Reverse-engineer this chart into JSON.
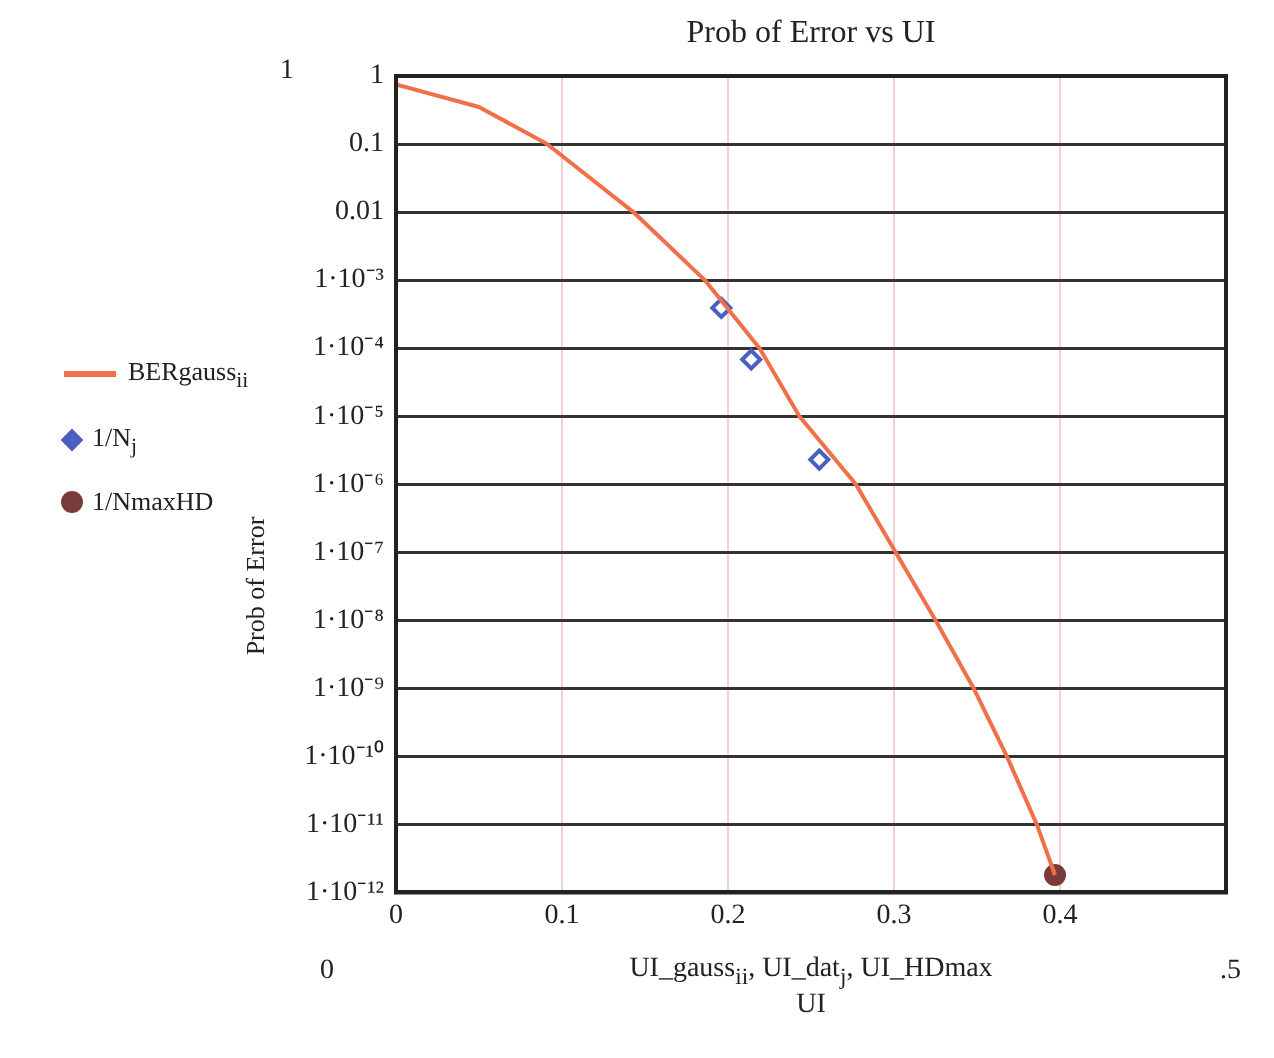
{
  "chart_data": {
    "type": "line",
    "title": "Prob of Error vs UI",
    "xlabel": "UI_gauss$_{ii}$, UI_dat$_{j}$, UI_HDmax\nUI",
    "ylabel": "Prob of Error",
    "annotations": [
      "1",
      "0",
      ".5"
    ],
    "xlim": [
      0,
      0.5
    ],
    "xticks": [
      0,
      0.1,
      0.2,
      0.3,
      0.4
    ],
    "ylim": [
      1e-12,
      1
    ],
    "yticks": [
      {
        "value": 1,
        "label": "1"
      },
      {
        "value": 0.1,
        "label": "0.1"
      },
      {
        "value": 0.01,
        "label": "0.01"
      },
      {
        "value": 0.001,
        "label": "1·10⁻³"
      },
      {
        "value": 0.0001,
        "label": "1·10⁻⁴"
      },
      {
        "value": 1e-05,
        "label": "1·10⁻⁵"
      },
      {
        "value": 1e-06,
        "label": "1·10⁻⁶"
      },
      {
        "value": 1e-07,
        "label": "1·10⁻⁷"
      },
      {
        "value": 1e-08,
        "label": "1·10⁻⁸"
      },
      {
        "value": 1e-09,
        "label": "1·10⁻⁹"
      },
      {
        "value": 1e-10,
        "label": "1·10⁻¹⁰"
      },
      {
        "value": 1e-11,
        "label": "1·10⁻¹¹"
      },
      {
        "value": 1e-12,
        "label": "1·10⁻¹²"
      }
    ],
    "log": "y",
    "grid": true,
    "legend": "left",
    "series": [
      {
        "name": "BERgauss$_{ii}$",
        "marker": "none",
        "color": "#f0704a",
        "x": [
          0,
          0.05,
          0.091,
          0.143,
          0.186,
          0.219,
          0.243,
          0.277,
          0.301,
          0.325,
          0.348,
          0.368,
          0.386,
          0.397
        ],
        "values": [
          0.75,
          0.35,
          0.1,
          0.01,
          0.001,
          0.0001,
          1e-05,
          1e-06,
          1e-07,
          1e-08,
          1e-09,
          1e-10,
          1e-11,
          1.8e-12
        ]
      },
      {
        "name": "1/N$_{j}$",
        "type": "scatter",
        "marker": "diamond",
        "color": "#4a5fc0",
        "x": [
          0.196,
          0.214,
          0.255
        ],
        "values": [
          0.00039,
          6.8e-05,
          2.3e-06
        ]
      },
      {
        "name": "1/NmaxHD",
        "type": "scatter",
        "marker": "circle",
        "color": "#7a3b3b",
        "x": [
          0.397
        ],
        "values": [
          1.8e-12
        ]
      }
    ]
  }
}
